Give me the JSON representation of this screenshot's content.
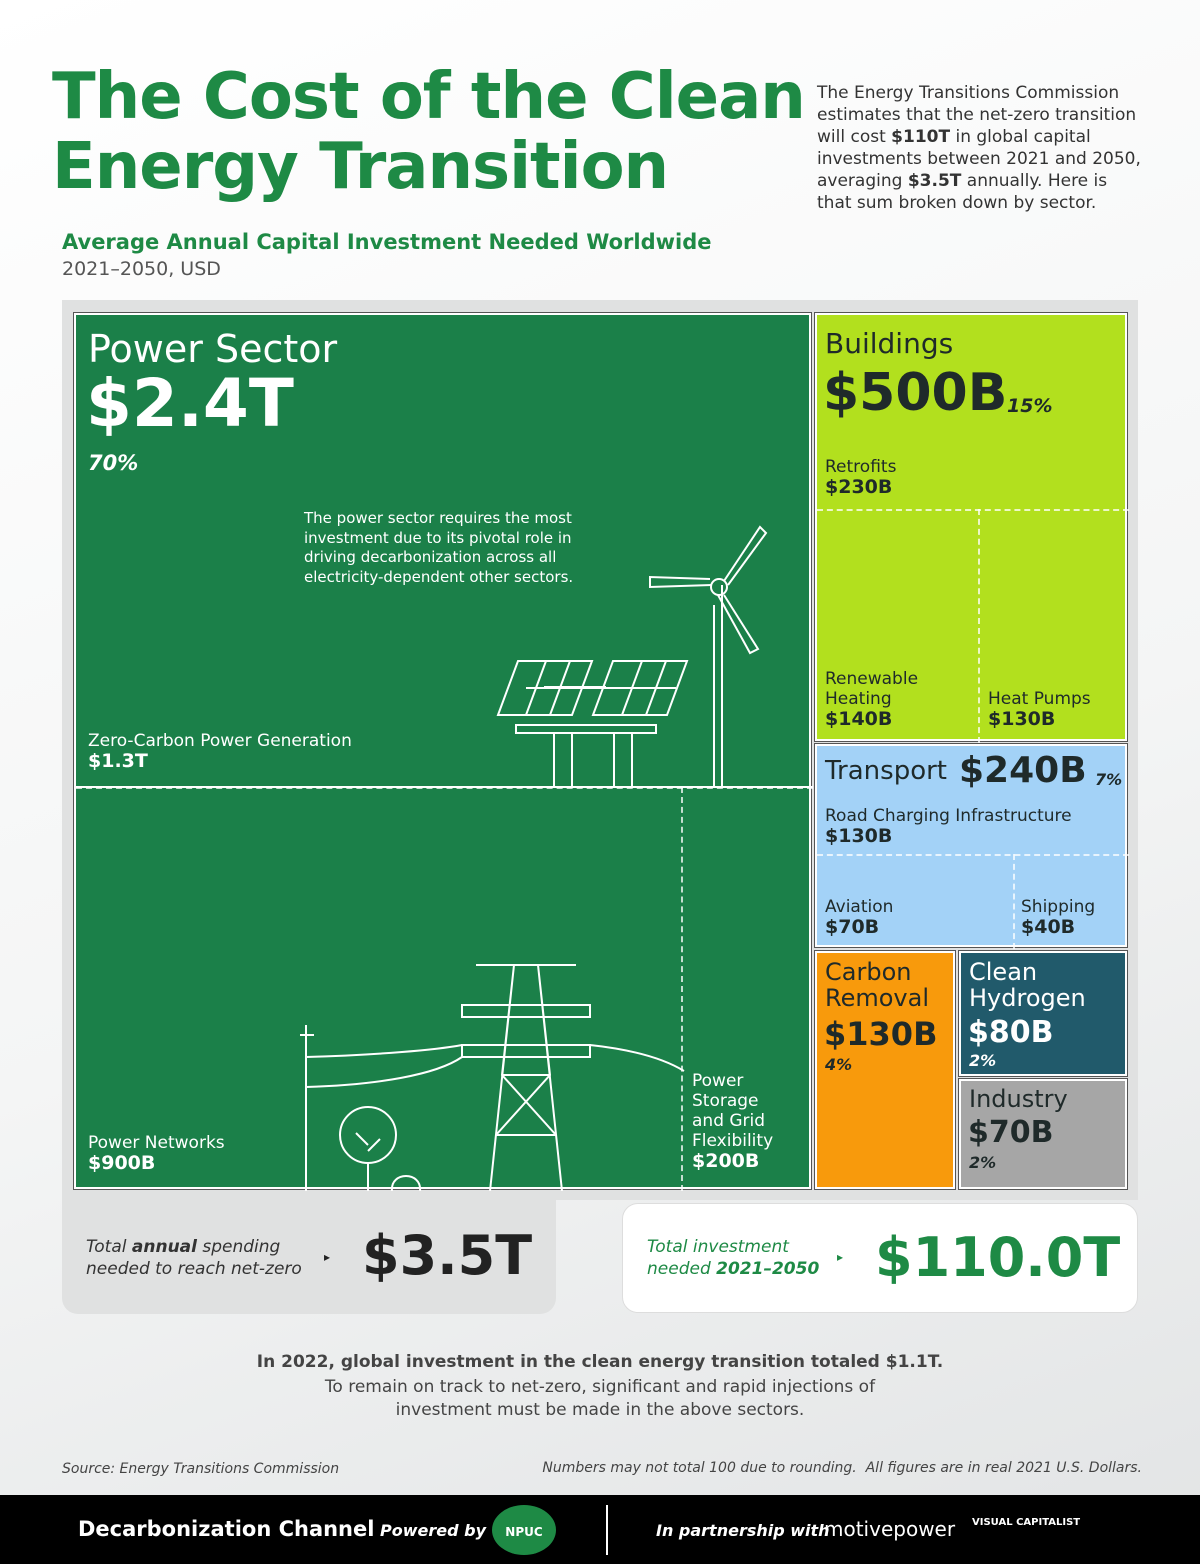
{
  "header": {
    "title_line1": "The Cost of the Clean",
    "title_line2": "Energy Transition",
    "description": [
      "The Energy Transitions Commission estimates that the net-zero transition will cost ",
      "$110T",
      " in global capital investments between 2021 and 2050, averaging ",
      "$3.5T",
      " annually. Here is that sum broken down by sector."
    ],
    "subtitle": "Average Annual Capital Investment Needed Worldwide",
    "period": "2021–2050, USD"
  },
  "sectors": {
    "power": {
      "name": "Power Sector",
      "value": "$2.4T",
      "share": "70%",
      "note": "The power sector requires the most investment due to its pivotal role in driving decarbonization across all electricity-dependent other sectors.",
      "subsectors": [
        {
          "name": "Zero-Carbon Power Generation",
          "value": "$1.3T"
        },
        {
          "name": "Power Networks",
          "value": "$900B"
        },
        {
          "name": "Power Storage and Grid Flexibility",
          "value": "$200B"
        }
      ]
    },
    "buildings": {
      "name": "Buildings",
      "value": "$500B",
      "share": "15%",
      "subsectors": [
        {
          "name": "Retrofits",
          "value": "$230B"
        },
        {
          "name": "Renewable Heating",
          "value": "$140B"
        },
        {
          "name": "Heat Pumps",
          "value": "$130B"
        }
      ]
    },
    "transport": {
      "name": "Transport",
      "value": "$240B",
      "share": "7%",
      "subsectors": [
        {
          "name": "Road Charging Infrastructure",
          "value": "$130B"
        },
        {
          "name": "Aviation",
          "value": "$70B"
        },
        {
          "name": "Shipping",
          "value": "$40B"
        }
      ]
    },
    "carbon": {
      "name": "Carbon Removal",
      "value": "$130B",
      "share": "4%"
    },
    "hydrogen": {
      "name": "Clean Hydrogen",
      "value": "$80B",
      "share": "2%"
    },
    "industry": {
      "name": "Industry",
      "value": "$70B",
      "share": "2%"
    }
  },
  "totals": {
    "annual": {
      "label": [
        "Total ",
        "annual",
        " spending needed to reach net-zero"
      ],
      "value": "$3.5T"
    },
    "overall": {
      "label": [
        "Total investment needed ",
        "2021–2050"
      ],
      "value": "$110.0T"
    }
  },
  "conclusion": {
    "headline": "In 2022, global investment in the clean energy transition totaled $1.1T.",
    "text": "To remain on track to net-zero, significant and rapid injections of investment must be made in the above sectors."
  },
  "source": "Source: Energy Transitions Commission",
  "disclaimer": "Numbers may not total 100 due to rounding.  All figures are in real 2021 U.S. Dollars.",
  "footer": {
    "brand": "Decarbonization Channel",
    "powered_by": "Powered by",
    "npuc": "NPUC",
    "partnership": "In partnership with",
    "partner1": "motivepower",
    "partner2": "VISUAL CAPITALIST"
  }
}
